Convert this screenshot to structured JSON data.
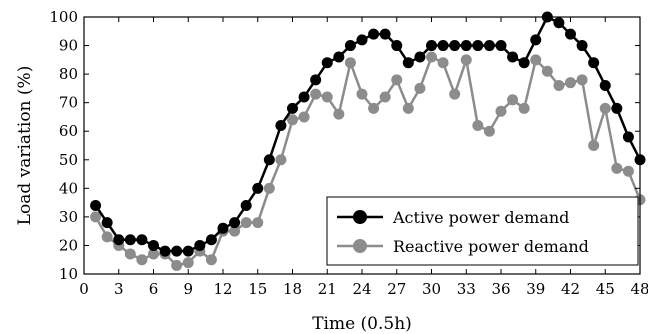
{
  "chart_data": {
    "type": "line",
    "xlabel": "Time (0.5h)",
    "ylabel": "Load variation (%)",
    "xlim": [
      0,
      48
    ],
    "ylim": [
      10,
      100
    ],
    "xticks": [
      0,
      3,
      6,
      9,
      12,
      15,
      18,
      21,
      24,
      27,
      30,
      33,
      36,
      39,
      42,
      45,
      48
    ],
    "yticks": [
      10,
      20,
      30,
      40,
      50,
      60,
      70,
      80,
      90,
      100
    ],
    "grid": false,
    "legend_position": "bottom-right",
    "x": [
      1,
      2,
      3,
      4,
      5,
      6,
      7,
      8,
      9,
      10,
      11,
      12,
      13,
      14,
      15,
      16,
      17,
      18,
      19,
      20,
      21,
      22,
      23,
      24,
      25,
      26,
      27,
      28,
      29,
      30,
      31,
      32,
      33,
      34,
      35,
      36,
      37,
      38,
      39,
      40,
      41,
      42,
      43,
      44,
      45,
      46,
      47,
      48
    ],
    "series": [
      {
        "name": "Active power demand",
        "color": "#000000",
        "marker": "circle",
        "values": [
          34,
          28,
          22,
          22,
          22,
          20,
          18,
          18,
          18,
          20,
          22,
          26,
          28,
          34,
          40,
          50,
          62,
          68,
          72,
          78,
          84,
          86,
          90,
          92,
          94,
          94,
          90,
          84,
          86,
          90,
          90,
          90,
          90,
          90,
          90,
          90,
          86,
          84,
          92,
          100,
          98,
          94,
          90,
          84,
          76,
          68,
          58,
          50
        ]
      },
      {
        "name": "Reactive power demand",
        "color": "#8c8c8c",
        "marker": "circle",
        "values": [
          30,
          23,
          20,
          17,
          15,
          17,
          17,
          13,
          14,
          18,
          15,
          25,
          25,
          28,
          28,
          40,
          50,
          64,
          65,
          73,
          72,
          66,
          84,
          73,
          68,
          72,
          78,
          68,
          75,
          86,
          84,
          73,
          85,
          62,
          60,
          67,
          71,
          68,
          85,
          81,
          76,
          77,
          78,
          55,
          68,
          47,
          46,
          36
        ]
      }
    ]
  }
}
